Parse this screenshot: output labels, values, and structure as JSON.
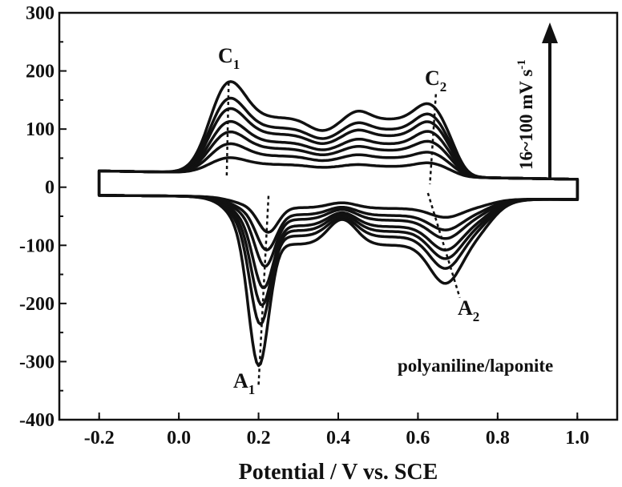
{
  "chart_data": {
    "type": "line",
    "title": "",
    "xlabel": "Potential / V vs. SCE",
    "ylabel": "",
    "xlim": [
      -0.3,
      1.1
    ],
    "ylim": [
      -400,
      300
    ],
    "xticks": [
      "-0.2",
      "0.0",
      "0.2",
      "0.4",
      "0.6",
      "0.8",
      "1.0"
    ],
    "yticks": [
      "300",
      "200",
      "100",
      "0",
      "-100",
      "-200",
      "-300",
      "-400"
    ],
    "grid": false,
    "legend": "none",
    "line_color": "#111111",
    "series_peaks": [
      {
        "C1": 30,
        "C2": 28,
        "A1": -60,
        "A2": -33
      },
      {
        "C1": 57,
        "C2": 50,
        "A1": -90,
        "A2": -55
      },
      {
        "C1": 80,
        "C2": 72,
        "A1": -118,
        "A2": -70
      },
      {
        "C1": 100,
        "C2": 92,
        "A1": -155,
        "A2": -90
      },
      {
        "C1": 125,
        "C2": 112,
        "A1": -185,
        "A2": -105
      },
      {
        "C1": 145,
        "C2": 128,
        "A1": -218,
        "A2": -122
      },
      {
        "C1": 177,
        "C2": 150,
        "A1": -290,
        "A2": -148
      }
    ],
    "annotations": {
      "c1": {
        "letter": "C",
        "sub": "1"
      },
      "c2": {
        "letter": "C",
        "sub": "2"
      },
      "a1": {
        "letter": "A",
        "sub": "1"
      },
      "a2": {
        "letter": "A",
        "sub": "2"
      }
    },
    "scan_rate_label": "16~100 mV s",
    "scan_rate_sup": "-1",
    "system_label": "polyaniline/laponite"
  }
}
